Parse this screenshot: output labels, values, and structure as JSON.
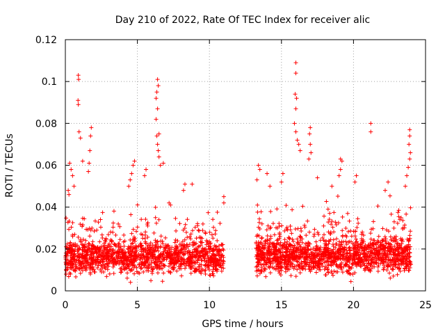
{
  "chart_data": {
    "type": "scatter",
    "title": "Day 210 of 2022, Rate Of TEC Index for receiver alic",
    "xlabel": "GPS time / hours",
    "ylabel": "ROTI / TECUs",
    "xlim": [
      0,
      25
    ],
    "ylim": [
      0,
      0.12
    ],
    "xticks": [
      "0",
      "5",
      "10",
      "15",
      "20",
      "25"
    ],
    "yticks": [
      "0",
      "0.02",
      "0.04",
      "0.06",
      "0.08",
      "0.1",
      "0.12"
    ],
    "grid": true,
    "marker": "+",
    "color": "#ff0000",
    "gap_hours": [
      11.0,
      13.2
    ],
    "series": [
      {
        "values": [
          [
            0.9,
            0.103
          ],
          [
            0.92,
            0.101
          ],
          [
            0.88,
            0.091
          ],
          [
            0.9,
            0.089
          ],
          [
            0.95,
            0.076
          ],
          [
            1.05,
            0.073
          ],
          [
            1.8,
            0.078
          ],
          [
            1.75,
            0.074
          ],
          [
            1.7,
            0.067
          ],
          [
            1.65,
            0.061
          ],
          [
            1.6,
            0.057
          ],
          [
            1.2,
            0.062
          ],
          [
            0.3,
            0.061
          ],
          [
            0.4,
            0.058
          ],
          [
            0.5,
            0.055
          ],
          [
            0.6,
            0.05
          ],
          [
            0.2,
            0.048
          ],
          [
            0.25,
            0.046
          ],
          [
            4.8,
            0.062
          ],
          [
            4.7,
            0.06
          ],
          [
            4.6,
            0.056
          ],
          [
            4.5,
            0.053
          ],
          [
            4.4,
            0.05
          ],
          [
            6.4,
            0.101
          ],
          [
            6.45,
            0.098
          ],
          [
            6.35,
            0.095
          ],
          [
            6.3,
            0.092
          ],
          [
            6.4,
            0.087
          ],
          [
            6.3,
            0.082
          ],
          [
            6.5,
            0.075
          ],
          [
            6.35,
            0.074
          ],
          [
            6.4,
            0.07
          ],
          [
            6.45,
            0.067
          ],
          [
            6.5,
            0.064
          ],
          [
            6.6,
            0.06
          ],
          [
            6.8,
            0.061
          ],
          [
            5.6,
            0.058
          ],
          [
            5.5,
            0.055
          ],
          [
            7.2,
            0.042
          ],
          [
            7.3,
            0.041
          ],
          [
            8.3,
            0.051
          ],
          [
            8.8,
            0.051
          ],
          [
            8.2,
            0.048
          ],
          [
            11.0,
            0.045
          ],
          [
            11.0,
            0.042
          ],
          [
            13.4,
            0.06
          ],
          [
            13.5,
            0.058
          ],
          [
            13.3,
            0.053
          ],
          [
            14.0,
            0.056
          ],
          [
            14.2,
            0.05
          ],
          [
            15.1,
            0.056
          ],
          [
            15.0,
            0.052
          ],
          [
            16.0,
            0.109
          ],
          [
            16.0,
            0.104
          ],
          [
            15.95,
            0.094
          ],
          [
            16.05,
            0.092
          ],
          [
            16.0,
            0.087
          ],
          [
            15.9,
            0.08
          ],
          [
            16.0,
            0.076
          ],
          [
            16.1,
            0.072
          ],
          [
            16.2,
            0.07
          ],
          [
            16.3,
            0.067
          ],
          [
            17.0,
            0.078
          ],
          [
            16.95,
            0.075
          ],
          [
            17.0,
            0.07
          ],
          [
            17.05,
            0.066
          ],
          [
            16.9,
            0.063
          ],
          [
            17.5,
            0.054
          ],
          [
            19.1,
            0.063
          ],
          [
            19.2,
            0.062
          ],
          [
            19.1,
            0.058
          ],
          [
            19.0,
            0.055
          ],
          [
            18.5,
            0.05
          ],
          [
            20.2,
            0.055
          ],
          [
            20.1,
            0.052
          ],
          [
            21.2,
            0.08
          ],
          [
            21.2,
            0.076
          ],
          [
            22.4,
            0.052
          ],
          [
            22.2,
            0.048
          ],
          [
            23.9,
            0.077
          ],
          [
            23.9,
            0.074
          ],
          [
            23.85,
            0.07
          ],
          [
            23.95,
            0.066
          ],
          [
            23.9,
            0.063
          ],
          [
            23.8,
            0.059
          ],
          [
            23.7,
            0.055
          ],
          [
            23.6,
            0.05
          ]
        ],
        "bulk": [
          {
            "from": 0.0,
            "to": 11.0,
            "median": 0.016,
            "spread": 0.01,
            "density": 1400
          },
          {
            "from": 13.2,
            "to": 24.0,
            "median": 0.017,
            "spread": 0.011,
            "density": 1500
          }
        ]
      }
    ]
  }
}
